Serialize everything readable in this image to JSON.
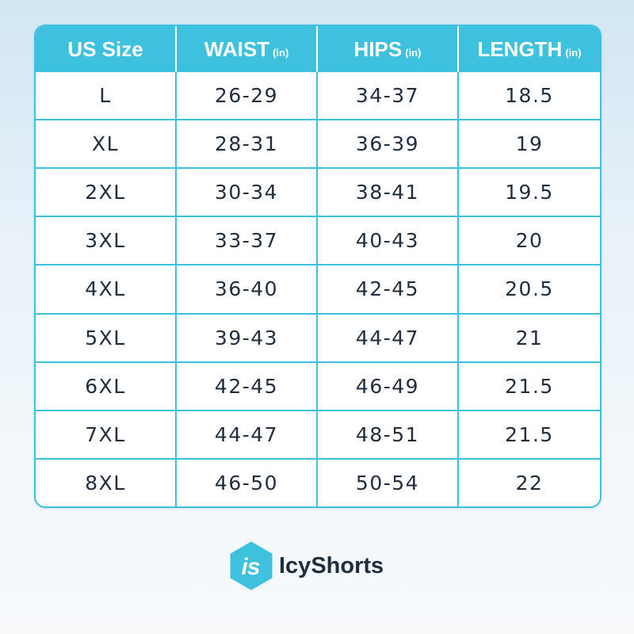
{
  "table": {
    "headers": [
      {
        "label": "US Size",
        "unit": ""
      },
      {
        "label": "WAIST",
        "unit": "(in)"
      },
      {
        "label": "HIPS",
        "unit": "(in)"
      },
      {
        "label": "LENGTH",
        "unit": "(in)"
      }
    ],
    "rows": [
      [
        "L",
        "26-29",
        "34-37",
        "18.5"
      ],
      [
        "XL",
        "28-31",
        "36-39",
        "19"
      ],
      [
        "2XL",
        "30-34",
        "38-41",
        "19.5"
      ],
      [
        "3XL",
        "33-37",
        "40-43",
        "20"
      ],
      [
        "4XL",
        "36-40",
        "42-45",
        "20.5"
      ],
      [
        "5XL",
        "39-43",
        "44-47",
        "21"
      ],
      [
        "6XL",
        "42-45",
        "46-49",
        "21.5"
      ],
      [
        "7XL",
        "44-47",
        "48-51",
        "21.5"
      ],
      [
        "8XL",
        "46-50",
        "50-54",
        "22"
      ]
    ]
  },
  "brand": {
    "logo_text": "is",
    "name": "IcyShorts",
    "logo_icon": "hexagon-logo-icon"
  },
  "colors": {
    "accent": "#3ec0df",
    "text": "#1f2d3d",
    "header_text": "#ffffff"
  }
}
